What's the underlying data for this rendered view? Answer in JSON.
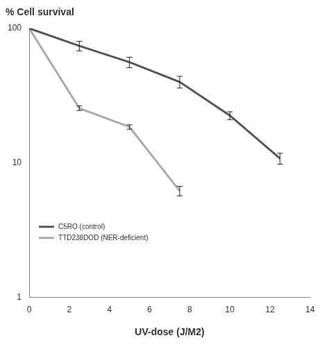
{
  "chart_data": {
    "type": "line",
    "y_label": "% Cell survival",
    "x_label": "UV-dose (J/M2)",
    "log": "y",
    "grid": false,
    "legend": "lower left",
    "xlim": [
      0,
      14
    ],
    "xticks": [
      0,
      2,
      4,
      6,
      8,
      10,
      12,
      14
    ],
    "ylim": [
      1,
      100
    ],
    "yticks": [
      1,
      10,
      100
    ],
    "marker": "none",
    "line_style": "solid",
    "series": [
      {
        "name": "C5RO (control)",
        "color": "#555555",
        "x": [
          0,
          2.5,
          5,
          7.5,
          10,
          12.5
        ],
        "values": [
          100,
          74,
          56,
          40,
          22.5,
          10.8
        ],
        "errors": [
          0,
          6,
          5,
          4,
          1.5,
          1
        ]
      },
      {
        "name": "TTD238DOD (NER-deficient)",
        "color": "#aaaaaa",
        "x": [
          0,
          2.5,
          5,
          7.5
        ],
        "values": [
          100,
          25.5,
          18.5,
          6.2
        ],
        "errors": [
          0,
          1,
          0.7,
          0.5
        ]
      }
    ]
  }
}
